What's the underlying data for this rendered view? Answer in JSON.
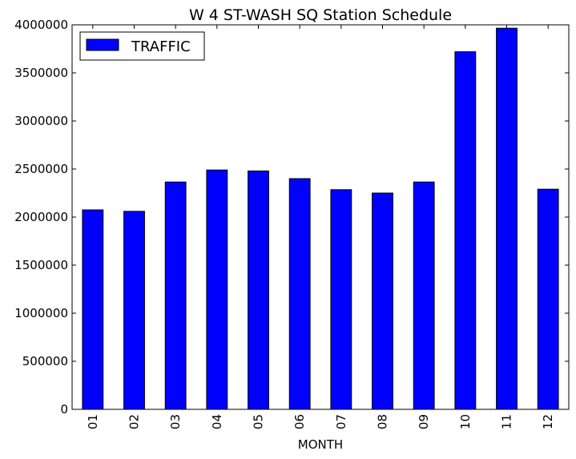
{
  "chart_data": {
    "type": "bar",
    "title": "W 4 ST-WASH SQ Station Schedule",
    "xlabel": "MONTH",
    "ylabel": "",
    "categories": [
      "01",
      "02",
      "03",
      "04",
      "05",
      "06",
      "07",
      "08",
      "09",
      "10",
      "11",
      "12"
    ],
    "series": [
      {
        "name": "TRAFFIC",
        "color": "#0000ff",
        "values": [
          2075000,
          2060000,
          2365000,
          2490000,
          2480000,
          2400000,
          2285000,
          2250000,
          2365000,
          3720000,
          3965000,
          2290000
        ]
      }
    ],
    "ylim": [
      0,
      4000000
    ],
    "yticks": [
      "0",
      "500000",
      "1000000",
      "1500000",
      "2000000",
      "2500000",
      "3000000",
      "3500000",
      "4000000"
    ],
    "grid": false,
    "legend_position": "top-left"
  }
}
